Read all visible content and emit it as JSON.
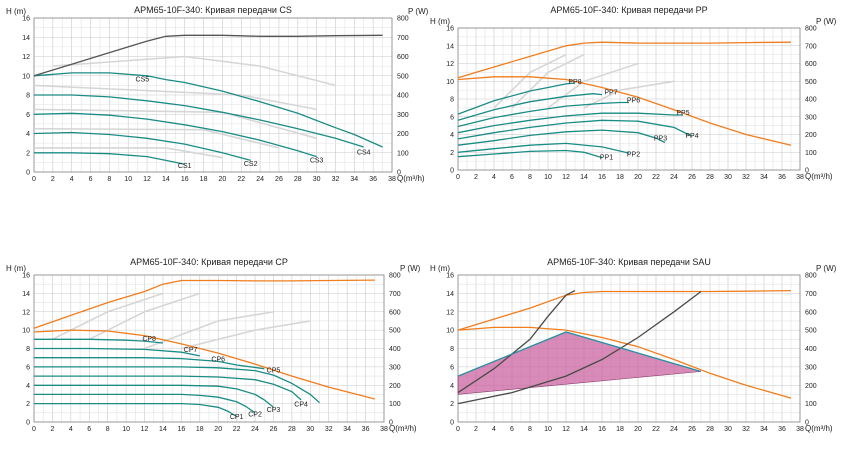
{
  "chart_data": [
    {
      "type": "line",
      "title": "APM65-10F-340: Кривая передачи CS",
      "xlabel": "Q(m³/h)",
      "ylabel_left": "H (m)",
      "ylabel_right": "P (W)",
      "xlim": [
        0,
        38
      ],
      "ylim_left": [
        0,
        16
      ],
      "ylim_right": [
        0,
        800
      ],
      "x_ticks": [
        0,
        2,
        4,
        6,
        8,
        10,
        12,
        14,
        16,
        18,
        20,
        22,
        24,
        26,
        28,
        30,
        32,
        34,
        36,
        38
      ],
      "y_left_ticks": [
        0,
        2,
        4,
        6,
        8,
        10,
        12,
        14,
        16
      ],
      "y_right_ticks": [
        0,
        100,
        200,
        300,
        400,
        500,
        600,
        700,
        800
      ],
      "grid": true,
      "series": [
        {
          "name": "CS1",
          "axis": "left",
          "color": "#1a8c86",
          "x": [
            0,
            4,
            8,
            12,
            14,
            16
          ],
          "y": [
            2.0,
            2.0,
            1.9,
            1.6,
            1.2,
            0.8
          ]
        },
        {
          "name": "CS2",
          "axis": "left",
          "color": "#1a8c86",
          "x": [
            0,
            4,
            8,
            12,
            16,
            20,
            23
          ],
          "y": [
            4.0,
            4.1,
            3.9,
            3.5,
            2.9,
            2.0,
            1.2
          ]
        },
        {
          "name": "CS3",
          "axis": "left",
          "color": "#1a8c86",
          "x": [
            0,
            4,
            8,
            12,
            16,
            20,
            24,
            28,
            30
          ],
          "y": [
            6.0,
            6.1,
            5.9,
            5.5,
            4.9,
            4.2,
            3.3,
            2.2,
            1.6
          ]
        },
        {
          "name": "CS4",
          "axis": "left",
          "color": "#1a8c86",
          "x": [
            0,
            4,
            8,
            12,
            16,
            20,
            24,
            28,
            32,
            35
          ],
          "y": [
            8.0,
            8.0,
            7.8,
            7.4,
            6.9,
            6.2,
            5.4,
            4.5,
            3.5,
            2.6
          ]
        },
        {
          "name": "CS5",
          "axis": "left",
          "color": "#1a8c86",
          "x": [
            0,
            4,
            8,
            12,
            14,
            16,
            20,
            24,
            28,
            32,
            34,
            37
          ],
          "y": [
            10.0,
            10.3,
            10.3,
            10.0,
            9.6,
            9.3,
            8.4,
            7.3,
            6.1,
            4.6,
            3.9,
            2.6
          ]
        },
        {
          "name": "",
          "axis": "right",
          "color": "#555555",
          "x": [
            0,
            4,
            8,
            12,
            14,
            16,
            20,
            24,
            28,
            32,
            37
          ],
          "y": [
            500,
            560,
            620,
            680,
            705,
            710,
            710,
            705,
            705,
            708,
            710
          ]
        }
      ],
      "annotations": [
        "CS1",
        "CS2",
        "CS3",
        "CS4",
        "CS5"
      ]
    },
    {
      "type": "line",
      "title": "APM65-10F-340: Кривая передачи PP",
      "xlabel": "Q(m³/h)",
      "ylabel_left": "H (m)",
      "ylabel_right": "P (W)",
      "xlim": [
        0,
        38
      ],
      "ylim_left": [
        0,
        16
      ],
      "ylim_right": [
        0,
        800
      ],
      "x_ticks": [
        0,
        2,
        4,
        6,
        8,
        10,
        12,
        14,
        16,
        18,
        20,
        22,
        24,
        26,
        28,
        30,
        32,
        34,
        36,
        38
      ],
      "y_left_ticks": [
        0,
        2,
        4,
        6,
        8,
        10,
        12,
        14,
        16
      ],
      "y_right_ticks": [
        0,
        100,
        200,
        300,
        400,
        500,
        600,
        700,
        800
      ],
      "grid": true,
      "series": [
        {
          "name": "PP1",
          "axis": "left",
          "color": "#1a8c86",
          "x": [
            0,
            4,
            8,
            12,
            14,
            16
          ],
          "y": [
            1.5,
            1.8,
            2.1,
            2.2,
            2.0,
            1.4
          ]
        },
        {
          "name": "PP2",
          "axis": "left",
          "color": "#1a8c86",
          "x": [
            0,
            4,
            8,
            12,
            16,
            19
          ],
          "y": [
            2.0,
            2.4,
            2.8,
            3.0,
            2.6,
            1.9
          ]
        },
        {
          "name": "PP3",
          "axis": "left",
          "color": "#1a8c86",
          "x": [
            0,
            4,
            8,
            12,
            16,
            20,
            22,
            23
          ],
          "y": [
            2.8,
            3.3,
            3.9,
            4.3,
            4.5,
            4.2,
            3.6,
            3.1
          ]
        },
        {
          "name": "PP4",
          "axis": "left",
          "color": "#1a8c86",
          "x": [
            0,
            4,
            8,
            12,
            16,
            20,
            24,
            26
          ],
          "y": [
            3.5,
            4.2,
            4.8,
            5.3,
            5.6,
            5.5,
            4.8,
            3.8
          ]
        },
        {
          "name": "PP5",
          "axis": "left",
          "color": "#1a8c86",
          "x": [
            0,
            4,
            8,
            12,
            16,
            20,
            24,
            25
          ],
          "y": [
            4.2,
            5.0,
            5.6,
            6.1,
            6.4,
            6.4,
            6.2,
            6.2
          ]
        },
        {
          "name": "PP6",
          "axis": "left",
          "color": "#1a8c86",
          "x": [
            0,
            4,
            8,
            12,
            16,
            18,
            19
          ],
          "y": [
            4.9,
            5.9,
            6.6,
            7.2,
            7.5,
            7.6,
            7.6
          ]
        },
        {
          "name": "PP7",
          "axis": "left",
          "color": "#1a8c86",
          "x": [
            0,
            4,
            8,
            12,
            15,
            16
          ],
          "y": [
            5.6,
            6.8,
            7.7,
            8.3,
            8.6,
            8.5
          ]
        },
        {
          "name": "PP8",
          "axis": "left",
          "color": "#1a8c86",
          "x": [
            0,
            4,
            8,
            10,
            12,
            13
          ],
          "y": [
            6.3,
            7.8,
            8.9,
            9.3,
            9.7,
            9.8
          ]
        },
        {
          "name": "",
          "axis": "left",
          "color": "#f07d1e",
          "x": [
            0,
            4,
            8,
            12,
            16,
            20,
            24,
            28,
            32,
            37
          ],
          "y": [
            10.2,
            10.5,
            10.5,
            10.2,
            9.3,
            8.2,
            6.8,
            5.3,
            4.0,
            2.8
          ]
        },
        {
          "name": "",
          "axis": "right",
          "color": "#f07d1e",
          "x": [
            0,
            4,
            8,
            12,
            14,
            16,
            20,
            24,
            28,
            32,
            37
          ],
          "y": [
            520,
            580,
            640,
            700,
            715,
            720,
            715,
            715,
            715,
            718,
            720
          ]
        }
      ],
      "annotations": [
        "PP1",
        "PP2",
        "PP3",
        "PP4",
        "PP5",
        "PP6",
        "PP7",
        "PP8"
      ]
    },
    {
      "type": "line",
      "title": "APM65-10F-340: Кривая передачи CP",
      "xlabel": "Q(m³/h)",
      "ylabel_left": "H (m)",
      "ylabel_right": "P (W)",
      "xlim": [
        0,
        38
      ],
      "ylim_left": [
        0,
        16
      ],
      "ylim_right": [
        0,
        800
      ],
      "x_ticks": [
        0,
        2,
        4,
        6,
        8,
        10,
        12,
        14,
        16,
        18,
        20,
        22,
        24,
        26,
        28,
        30,
        32,
        34,
        36,
        38
      ],
      "y_left_ticks": [
        0,
        2,
        4,
        6,
        8,
        10,
        12,
        14,
        16
      ],
      "y_right_ticks": [
        0,
        100,
        200,
        300,
        400,
        500,
        600,
        700,
        800
      ],
      "grid": true,
      "series": [
        {
          "name": "CP1",
          "axis": "left",
          "color": "#1a8c86",
          "x": [
            0,
            6,
            12,
            16,
            18,
            20,
            21,
            22
          ],
          "y": [
            2.0,
            2.0,
            2.0,
            2.0,
            1.9,
            1.6,
            1.2,
            0.6
          ]
        },
        {
          "name": "CP2",
          "axis": "left",
          "color": "#1a8c86",
          "x": [
            0,
            6,
            12,
            16,
            18,
            20,
            22,
            23,
            24
          ],
          "y": [
            3.0,
            3.0,
            3.0,
            3.0,
            2.9,
            2.7,
            2.2,
            1.7,
            1.0
          ]
        },
        {
          "name": "CP3",
          "axis": "left",
          "color": "#1a8c86",
          "x": [
            0,
            6,
            12,
            16,
            20,
            22,
            24,
            25,
            26
          ],
          "y": [
            4.0,
            4.0,
            4.0,
            4.0,
            3.9,
            3.6,
            3.0,
            2.4,
            1.6
          ]
        },
        {
          "name": "CP4",
          "axis": "left",
          "color": "#1a8c86",
          "x": [
            0,
            6,
            12,
            16,
            20,
            24,
            26,
            28,
            29
          ],
          "y": [
            5.0,
            5.0,
            5.0,
            5.0,
            4.9,
            4.6,
            4.1,
            3.3,
            2.4
          ]
        },
        {
          "name": "CP5",
          "axis": "left",
          "color": "#1a8c86",
          "x": [
            0,
            6,
            12,
            16,
            20,
            24,
            26,
            28,
            30,
            31
          ],
          "y": [
            6.0,
            6.0,
            6.0,
            6.0,
            5.9,
            5.6,
            5.1,
            4.2,
            3.0,
            2.1
          ]
        },
        {
          "name": "CP6",
          "axis": "left",
          "color": "#1a8c86",
          "x": [
            0,
            6,
            12,
            16,
            20,
            22,
            25
          ],
          "y": [
            7.0,
            7.0,
            7.0,
            6.9,
            6.6,
            6.2,
            5.8
          ]
        },
        {
          "name": "CP7",
          "axis": "left",
          "color": "#1a8c86",
          "x": [
            0,
            6,
            12,
            16,
            18
          ],
          "y": [
            8.0,
            8.0,
            7.9,
            7.6,
            7.2
          ]
        },
        {
          "name": "CP8",
          "axis": "left",
          "color": "#1a8c86",
          "x": [
            0,
            6,
            10,
            12,
            14
          ],
          "y": [
            9.0,
            9.0,
            8.9,
            8.8,
            8.6
          ]
        },
        {
          "name": "",
          "axis": "left",
          "color": "#f07d1e",
          "x": [
            0,
            4,
            8,
            12,
            16,
            20,
            24,
            28,
            32,
            37
          ],
          "y": [
            9.8,
            10.0,
            9.9,
            9.4,
            8.5,
            7.5,
            6.3,
            5.0,
            3.8,
            2.5
          ]
        },
        {
          "name": "",
          "axis": "right",
          "color": "#f07d1e",
          "x": [
            0,
            4,
            8,
            12,
            14,
            16,
            20,
            24,
            28,
            32,
            37
          ],
          "y": [
            510,
            580,
            650,
            710,
            750,
            770,
            770,
            768,
            768,
            770,
            772
          ]
        }
      ],
      "annotations": [
        "CP1",
        "CP2",
        "CP3",
        "CP4",
        "CP5",
        "CP6",
        "CP7",
        "CP8"
      ]
    },
    {
      "type": "area",
      "title": "APM65-10F-340: Кривая передачи SAU",
      "xlabel": "Q(m³/h)",
      "ylabel_left": "H (m)",
      "ylabel_right": "P (W)",
      "xlim": [
        0,
        38
      ],
      "ylim_left": [
        0,
        16
      ],
      "ylim_right": [
        0,
        800
      ],
      "x_ticks": [
        0,
        2,
        4,
        6,
        8,
        10,
        12,
        14,
        16,
        18,
        20,
        22,
        24,
        26,
        28,
        30,
        32,
        34,
        36,
        38
      ],
      "y_left_ticks": [
        0,
        2,
        4,
        6,
        8,
        10,
        12,
        14,
        16
      ],
      "y_right_ticks": [
        0,
        100,
        200,
        300,
        400,
        500,
        600,
        700,
        800
      ],
      "grid": true,
      "region": {
        "x": [
          0,
          12,
          27,
          0
        ],
        "y": [
          5.0,
          9.8,
          5.5,
          3.0
        ],
        "color": "#c85a9a"
      },
      "series": [
        {
          "name": "",
          "axis": "left",
          "color": "#f07d1e",
          "x": [
            0,
            4,
            8,
            12,
            16,
            20,
            24,
            28,
            32,
            37
          ],
          "y": [
            10.0,
            10.3,
            10.3,
            10.0,
            9.2,
            8.2,
            6.8,
            5.3,
            4.0,
            2.6
          ]
        },
        {
          "name": "",
          "axis": "right",
          "color": "#f07d1e",
          "x": [
            0,
            4,
            8,
            12,
            14,
            16,
            20,
            24,
            28,
            32,
            37
          ],
          "y": [
            500,
            560,
            620,
            690,
            705,
            710,
            710,
            710,
            710,
            712,
            715
          ]
        },
        {
          "name": "",
          "axis": "left",
          "color": "#4a4a4a",
          "x": [
            0,
            4,
            8,
            10,
            12,
            13
          ],
          "y": [
            3.2,
            5.8,
            9.0,
            11.5,
            13.8,
            14.3
          ]
        },
        {
          "name": "",
          "axis": "left",
          "color": "#4a4a4a",
          "x": [
            0,
            6,
            12,
            16,
            20,
            24,
            27
          ],
          "y": [
            2.0,
            3.2,
            5.0,
            6.8,
            9.2,
            12.0,
            14.2
          ]
        },
        {
          "name": "",
          "axis": "left",
          "color": "#2a8fa0",
          "x": [
            0,
            12,
            27
          ],
          "y": [
            5.0,
            9.8,
            5.5
          ]
        }
      ]
    }
  ]
}
